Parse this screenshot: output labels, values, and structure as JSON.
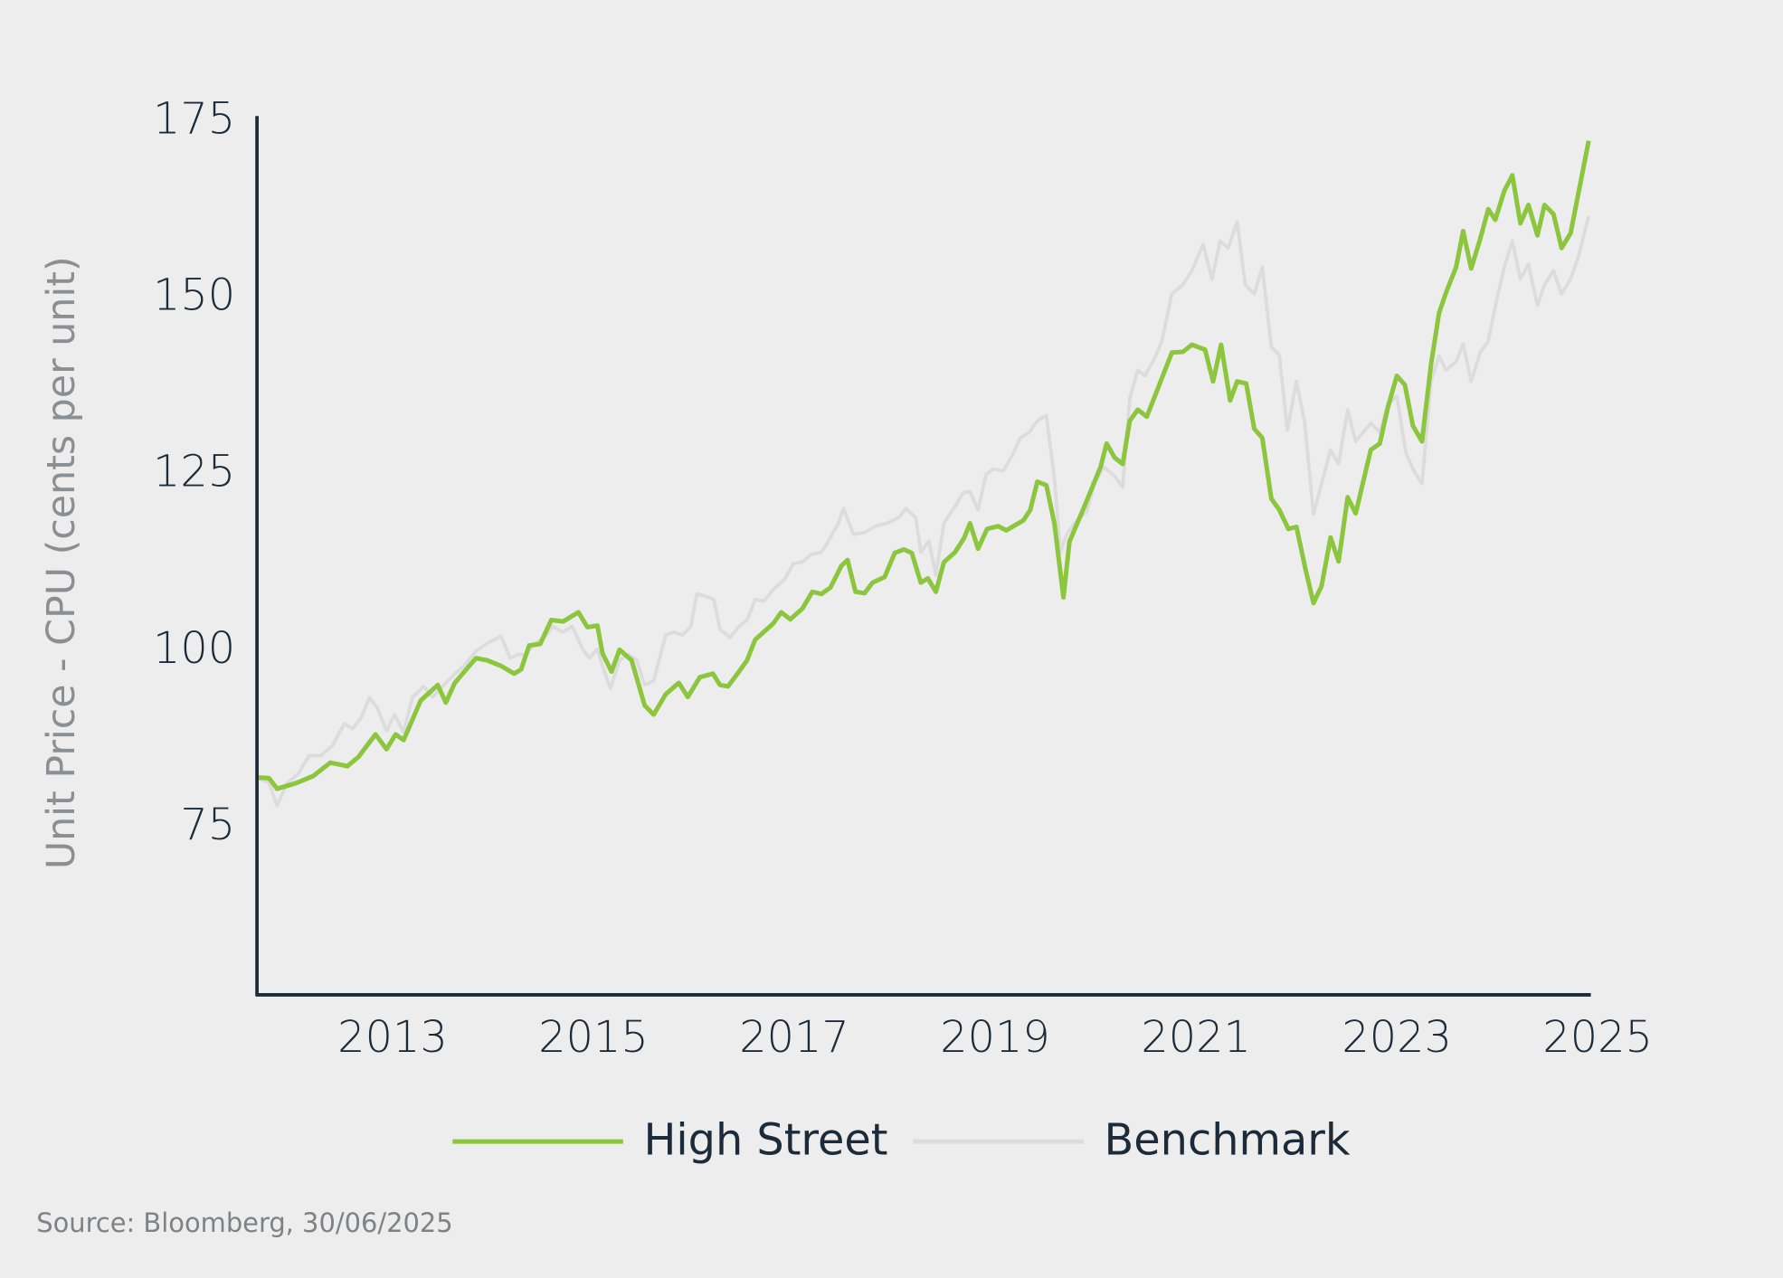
{
  "chart_data": {
    "type": "line",
    "y_label": "Unit Price - CPU (cents per unit)",
    "source": "Source: Bloomberg, 30/06/2025",
    "xlim": [
      2011.65,
      2024.92
    ],
    "xticks": [
      2013,
      2015,
      2017,
      2019,
      2021,
      2023,
      2025
    ],
    "ylim": [
      51.3,
      175.8
    ],
    "yticks": [
      75,
      100,
      125,
      150,
      175
    ],
    "grid": false,
    "legend": "bottom",
    "series": [
      {
        "name": "High Street",
        "color": "#8cc63f",
        "x": [
          2011.65,
          2011.77,
          2011.85,
          2012.04,
          2012.21,
          2012.38,
          2012.55,
          2012.66,
          2012.83,
          2012.94,
          2013.03,
          2013.11,
          2013.28,
          2013.45,
          2013.53,
          2013.62,
          2013.83,
          2013.94,
          2014.08,
          2014.21,
          2014.28,
          2014.36,
          2014.47,
          2014.58,
          2014.7,
          2014.85,
          2014.94,
          2015.04,
          2015.09,
          2015.18,
          2015.26,
          2015.38,
          2015.51,
          2015.6,
          2015.72,
          2015.85,
          2015.94,
          2016.06,
          2016.19,
          2016.26,
          2016.34,
          2016.45,
          2016.53,
          2016.61,
          2016.79,
          2016.87,
          2016.96,
          2017.08,
          2017.18,
          2017.27,
          2017.36,
          2017.47,
          2017.53,
          2017.61,
          2017.7,
          2017.78,
          2017.9,
          2018.0,
          2018.09,
          2018.17,
          2018.26,
          2018.33,
          2018.41,
          2018.49,
          2018.6,
          2018.69,
          2018.75,
          2018.83,
          2018.92,
          2019.03,
          2019.11,
          2019.28,
          2019.35,
          2019.42,
          2019.51,
          2019.59,
          2019.68,
          2019.74,
          2019.88,
          2020.05,
          2020.11,
          2020.19,
          2020.27,
          2020.34,
          2020.42,
          2020.51,
          2020.59,
          2020.76,
          2020.87,
          2020.96,
          2021.09,
          2021.17,
          2021.25,
          2021.34,
          2021.41,
          2021.5,
          2021.58,
          2021.66,
          2021.75,
          2021.83,
          2021.92,
          2022.0,
          2022.09,
          2022.17,
          2022.25,
          2022.34,
          2022.42,
          2022.51,
          2022.59,
          2022.74,
          2022.83,
          2022.91,
          2023.0,
          2023.08,
          2023.16,
          2023.25,
          2023.34,
          2023.42,
          2023.49,
          2023.59,
          2023.66,
          2023.74,
          2023.83,
          2023.91,
          2023.98,
          2024.07,
          2024.15,
          2024.23,
          2024.31,
          2024.4,
          2024.47,
          2024.56,
          2024.64,
          2024.73,
          2024.91
        ],
        "values": [
          82.1,
          82,
          80.5,
          81.3,
          82.3,
          84.2,
          83.7,
          85,
          88.2,
          86.1,
          88.2,
          87.4,
          93,
          95.2,
          92.7,
          95.5,
          99,
          98.7,
          97.9,
          96.8,
          97.4,
          100.8,
          101,
          104.4,
          104.2,
          105.5,
          103.4,
          103.6,
          99.7,
          97.1,
          100.2,
          98.7,
          92.3,
          91,
          93.9,
          95.5,
          93.5,
          96.3,
          96.8,
          95.2,
          95,
          97.1,
          98.7,
          101.6,
          103.9,
          105.5,
          104.5,
          106,
          108.4,
          108.1,
          109,
          112.1,
          112.9,
          108.4,
          108.2,
          109.7,
          110.5,
          113.9,
          114.4,
          113.9,
          109.7,
          110.3,
          108.4,
          112.6,
          114,
          116,
          118.1,
          114.5,
          117.3,
          117.7,
          117.1,
          118.5,
          120,
          124,
          123.5,
          118.1,
          107.6,
          115.5,
          120.2,
          126.1,
          129.4,
          127.4,
          126.5,
          132.6,
          134.2,
          133.2,
          136.1,
          142.3,
          142.4,
          143.4,
          142.7,
          138.2,
          143.4,
          135.5,
          138.2,
          137.9,
          131.5,
          130.2,
          121.6,
          120,
          117.3,
          117.6,
          111.6,
          106.8,
          109.2,
          116.1,
          112.7,
          121.8,
          119.5,
          128.5,
          129.4,
          134.5,
          139,
          137.7,
          131.9,
          129.7,
          140.6,
          147.9,
          150.8,
          154.4,
          159.5,
          154.2,
          158.4,
          162.6,
          161.1,
          165.2,
          167.4,
          160.6,
          163.2,
          158.9,
          163.2,
          161.9,
          157.1,
          159.2,
          172.3
        ]
      },
      {
        "name": "Benchmark",
        "color": "#dcdcdc",
        "x": [
          2011.65,
          2011.77,
          2011.85,
          2011.95,
          2012.06,
          2012.17,
          2012.29,
          2012.4,
          2012.52,
          2012.6,
          2012.69,
          2012.77,
          2012.85,
          2012.94,
          2013.02,
          2013.11,
          2013.2,
          2013.31,
          2013.4,
          2013.51,
          2013.62,
          2013.71,
          2013.83,
          2013.94,
          2014.08,
          2014.17,
          2014.25,
          2014.32,
          2014.42,
          2014.51,
          2014.6,
          2014.69,
          2014.79,
          2014.89,
          2014.96,
          2015.04,
          2015.09,
          2015.17,
          2015.26,
          2015.35,
          2015.43,
          2015.51,
          2015.6,
          2015.72,
          2015.8,
          2015.89,
          2015.97,
          2016.03,
          2016.11,
          2016.2,
          2016.26,
          2016.36,
          2016.45,
          2016.53,
          2016.61,
          2016.7,
          2016.79,
          2016.91,
          2016.99,
          2017.08,
          2017.17,
          2017.27,
          2017.34,
          2017.44,
          2017.49,
          2017.59,
          2017.7,
          2017.81,
          2017.92,
          2018.04,
          2018.11,
          2018.21,
          2018.26,
          2018.34,
          2018.41,
          2018.49,
          2018.6,
          2018.68,
          2018.75,
          2018.83,
          2018.91,
          2018.98,
          2019.08,
          2019.17,
          2019.25,
          2019.34,
          2019.42,
          2019.51,
          2019.59,
          2019.65,
          2019.71,
          2019.79,
          2019.91,
          2019.99,
          2020.08,
          2020.19,
          2020.27,
          2020.34,
          2020.42,
          2020.49,
          2020.59,
          2020.66,
          2020.76,
          2020.87,
          2020.96,
          2021.07,
          2021.16,
          2021.24,
          2021.32,
          2021.41,
          2021.49,
          2021.58,
          2021.66,
          2021.75,
          2021.83,
          2021.91,
          2022.0,
          2022.08,
          2022.17,
          2022.25,
          2022.34,
          2022.42,
          2022.51,
          2022.59,
          2022.74,
          2022.83,
          2022.91,
          2023.0,
          2023.09,
          2023.16,
          2023.25,
          2023.34,
          2023.42,
          2023.49,
          2023.59,
          2023.66,
          2023.74,
          2023.83,
          2023.91,
          2023.99,
          2024.07,
          2024.15,
          2024.23,
          2024.31,
          2024.4,
          2024.47,
          2024.56,
          2024.64,
          2024.73,
          2024.81,
          2024.91
        ],
        "values": [
          82.1,
          81.3,
          78.1,
          81.3,
          82.6,
          85.2,
          85.2,
          86.6,
          89.7,
          89,
          90.6,
          93.4,
          91.9,
          88.7,
          91,
          88.5,
          93.5,
          95,
          93.5,
          95.2,
          96.8,
          97.9,
          100,
          101.1,
          102.1,
          99,
          99.5,
          99.5,
          101.1,
          101.9,
          103.5,
          102.7,
          103.5,
          100.3,
          99,
          100.3,
          97.9,
          94.7,
          98.7,
          99.5,
          98.7,
          95.2,
          95.8,
          102.3,
          102.7,
          102.3,
          103.5,
          108.1,
          107.8,
          107.3,
          103.1,
          101.9,
          103.5,
          104.4,
          107.3,
          107.1,
          108.7,
          110.3,
          112.4,
          112.6,
          113.7,
          114,
          115.6,
          118.1,
          120.2,
          116.5,
          116.8,
          117.7,
          118.1,
          118.9,
          120.2,
          118.9,
          114,
          115.6,
          110.8,
          118.1,
          120.5,
          122.4,
          122.6,
          120,
          125,
          125.8,
          125.5,
          127.7,
          130.2,
          131,
          132.6,
          133.4,
          124.5,
          114,
          116.5,
          118.1,
          119.7,
          123.7,
          126.1,
          124.8,
          123.2,
          135.8,
          139.8,
          139,
          141.5,
          143.9,
          150.6,
          151.9,
          153.9,
          157.6,
          152.7,
          158.1,
          157.1,
          160.8,
          151.9,
          150.6,
          154.4,
          143.1,
          141.9,
          131.3,
          138.2,
          132.6,
          119.4,
          123.7,
          128.5,
          126.5,
          134.2,
          129.7,
          132.3,
          131,
          135,
          136.1,
          128.1,
          125.8,
          123.7,
          138.2,
          141.8,
          139.8,
          141,
          143.5,
          138.2,
          142.3,
          143.9,
          149.5,
          154.4,
          158.1,
          152.7,
          154.8,
          149,
          151.9,
          153.9,
          150.6,
          152.7,
          156,
          161.6
        ]
      }
    ]
  }
}
